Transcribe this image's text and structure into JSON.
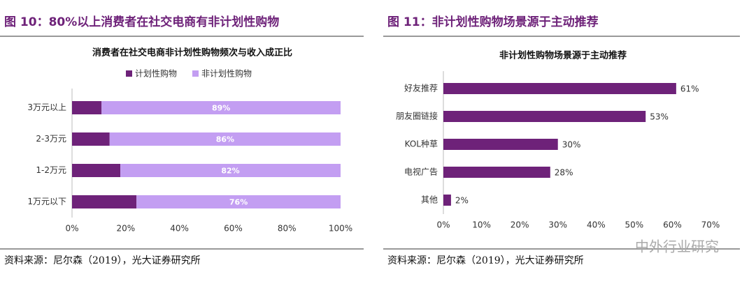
{
  "chart_data": [
    {
      "type": "hbar_stacked",
      "figure_title": "图 10：80%以上消费者在社交电商有非计划性购物",
      "title": "消费者在社交电商非计划性购物频次与收入成正比",
      "source": "资料来源：尼尔森（2019），光大证券研究所",
      "categories": [
        "3万元以上",
        "2-3万元",
        "1-2万元",
        "1万元以下"
      ],
      "series": [
        {
          "name": "计划性购物",
          "color": "#6e2279",
          "values": [
            11,
            14,
            18,
            24
          ]
        },
        {
          "name": "非计划性购物",
          "color": "#c39ef2",
          "values": [
            89,
            86,
            82,
            76
          ],
          "value_labels": [
            "89%",
            "86%",
            "82%",
            "76%"
          ]
        }
      ],
      "xlim": [
        0,
        100
      ],
      "xticks": [
        {
          "value": 0,
          "label": "0%"
        },
        {
          "value": 20,
          "label": "20%"
        },
        {
          "value": 40,
          "label": "40%"
        },
        {
          "value": 60,
          "label": "60%"
        },
        {
          "value": 80,
          "label": "80%"
        },
        {
          "value": 100,
          "label": "100%"
        }
      ],
      "legend": "top"
    },
    {
      "type": "hbar",
      "figure_title": "图 11：非计划性购物场景源于主动推荐",
      "title": "非计划性购物场景源于主动推荐",
      "source": "资料来源：尼尔森（2019），光大证券研究所",
      "watermark": "中外行业研究",
      "categories": [
        "好友推荐",
        "朋友圈链接",
        "KOL种草",
        "电视广告",
        "其他"
      ],
      "values": [
        61,
        53,
        30,
        28,
        2
      ],
      "value_labels": [
        "61%",
        "53%",
        "30%",
        "28%",
        "2%"
      ],
      "color": "#6e2279",
      "xlim": [
        0,
        70
      ],
      "xticks": [
        {
          "value": 0,
          "label": "0%"
        },
        {
          "value": 10,
          "label": "10%"
        },
        {
          "value": 20,
          "label": "20%"
        },
        {
          "value": 30,
          "label": "30%"
        },
        {
          "value": 40,
          "label": "40%"
        },
        {
          "value": 50,
          "label": "50%"
        },
        {
          "value": 60,
          "label": "60%"
        },
        {
          "value": 70,
          "label": "70%"
        }
      ]
    }
  ]
}
